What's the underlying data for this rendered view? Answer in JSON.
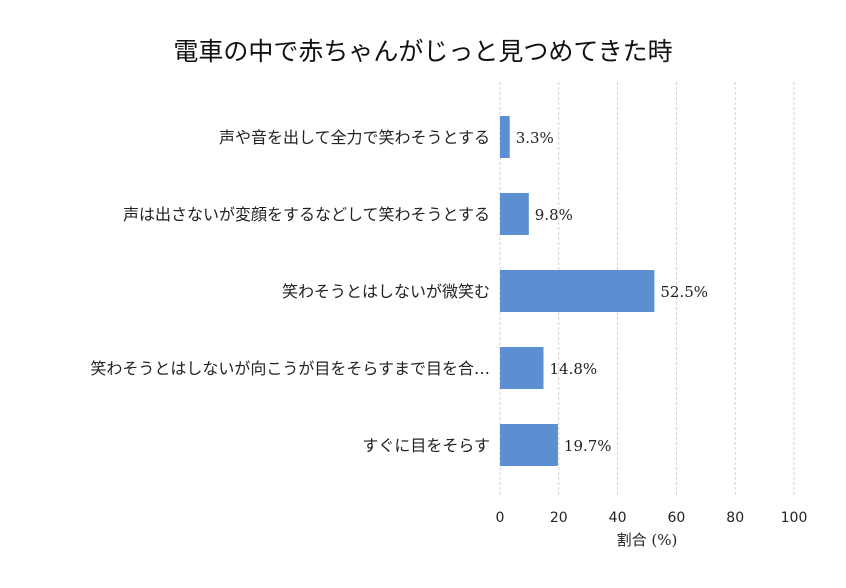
{
  "chart_data": {
    "type": "bar",
    "orientation": "horizontal",
    "title": "電車の中で赤ちゃんがじっと見つめてきた時",
    "xlabel": "割合 (%)",
    "ylabel": "",
    "xlim": [
      0,
      100
    ],
    "xticks": [
      0,
      20,
      40,
      60,
      80,
      100
    ],
    "grid": true,
    "bar_color": "#5b8fd1",
    "categories": [
      "声や音を出して全力で笑わそうとする",
      "声は出さないが変顔をするなどして笑わそうとする",
      "笑わそうとはしないが微笑む",
      "笑わそうとはしないが向こうが目をそらすまで目を合…",
      "すぐに目をそらす"
    ],
    "values": [
      3.3,
      9.8,
      52.5,
      14.8,
      19.7
    ],
    "value_labels": [
      "3.3%",
      "9.8%",
      "52.5%",
      "14.8%",
      "19.7%"
    ]
  }
}
